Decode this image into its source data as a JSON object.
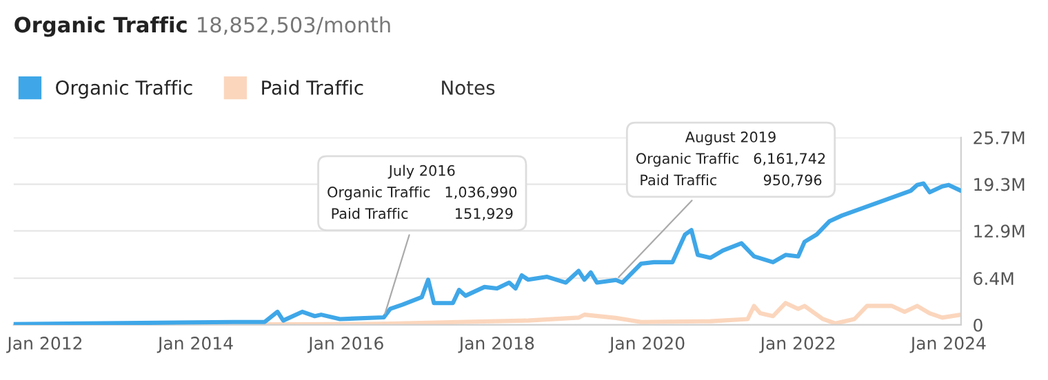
{
  "chart_data": {
    "type": "line",
    "title": "Organic Traffic",
    "subtitle": "18,852,503/month",
    "x": [
      "2011-08",
      "2014-07",
      "2014-12",
      "2015-02",
      "2015-03",
      "2015-06",
      "2015-08",
      "2015-09",
      "2015-12",
      "2016-07",
      "2016-08",
      "2016-10",
      "2017-01",
      "2017-02",
      "2017-03",
      "2017-06",
      "2017-07",
      "2017-08",
      "2017-11",
      "2018-01",
      "2018-03",
      "2018-04",
      "2018-05",
      "2018-06",
      "2018-09",
      "2018-12",
      "2019-02",
      "2019-03",
      "2019-04",
      "2019-05",
      "2019-08",
      "2019-09",
      "2019-12",
      "2020-02",
      "2020-05",
      "2020-07",
      "2020-08",
      "2020-09",
      "2020-11",
      "2021-01",
      "2021-04",
      "2021-06",
      "2021-09",
      "2021-11",
      "2022-01",
      "2022-02",
      "2022-04",
      "2022-06",
      "2022-08",
      "2022-10",
      "2023-01",
      "2023-07",
      "2023-08",
      "2023-09",
      "2023-10",
      "2023-12",
      "2024-01",
      "2024-03"
    ],
    "series": [
      {
        "name": "Organic Traffic",
        "color": "#3fa7e8",
        "values": [
          100000,
          400000,
          400000,
          1800000,
          600000,
          1800000,
          1200000,
          1400000,
          800000,
          1036990,
          2200000,
          2800000,
          3800000,
          6200000,
          3000000,
          3000000,
          4800000,
          4000000,
          5200000,
          5000000,
          5800000,
          5000000,
          6800000,
          6200000,
          6600000,
          5800000,
          7400000,
          6200000,
          7200000,
          5800000,
          6161742,
          5800000,
          8400000,
          8600000,
          8600000,
          12400000,
          13000000,
          9600000,
          9200000,
          10200000,
          11200000,
          9400000,
          8600000,
          9600000,
          9400000,
          11400000,
          12400000,
          14200000,
          15000000,
          null,
          null,
          18400000,
          19200000,
          19400000,
          18200000,
          19000000,
          19200000,
          18400000
        ]
      },
      {
        "name": "Paid Traffic",
        "color": "#fbd6bd",
        "x": [
          "2011-08",
          "2016-01",
          "2016-07",
          "2017-07",
          "2018-06",
          "2019-02",
          "2019-03",
          "2019-08",
          "2019-12",
          "2020-11",
          "2021-05",
          "2021-06",
          "2021-07",
          "2021-09",
          "2021-11",
          "2022-01",
          "2022-02",
          "2022-05",
          "2022-07",
          "2022-10",
          "2022-12",
          "2023-04",
          "2023-06",
          "2023-08",
          "2023-10",
          "2023-12",
          "2024-03"
        ],
        "values": [
          0,
          100000,
          151929,
          400000,
          600000,
          1000000,
          1400000,
          950796,
          400000,
          500000,
          800000,
          2600000,
          1600000,
          1200000,
          3000000,
          2200000,
          2600000,
          800000,
          200000,
          800000,
          2600000,
          2600000,
          1800000,
          2600000,
          1600000,
          1000000,
          1400000
        ]
      }
    ],
    "xlim": [
      "2011-08",
      "2024-03"
    ],
    "xticks": [
      {
        "value": "2012-01",
        "label": "Jan 2012"
      },
      {
        "value": "2014-01",
        "label": "Jan 2014"
      },
      {
        "value": "2016-01",
        "label": "Jan 2016"
      },
      {
        "value": "2018-01",
        "label": "Jan 2018"
      },
      {
        "value": "2020-01",
        "label": "Jan 2020"
      },
      {
        "value": "2022-01",
        "label": "Jan 2022"
      },
      {
        "value": "2024-01",
        "label": "Jan 2024"
      }
    ],
    "ylim": [
      0,
      25700000
    ],
    "yticks": [
      0,
      {
        "value": 6400000,
        "label": "6.4M"
      },
      {
        "value": 12900000,
        "label": "12.9M"
      },
      {
        "value": 19300000,
        "label": "19.3M"
      },
      {
        "value": 25700000,
        "label": "25.7M"
      }
    ],
    "grid": "y",
    "legend": "top left",
    "marker": "none",
    "annotations": [
      {
        "text": "July 2016\nOrganic Traffic   1,036,990\nPaid Traffic          151,929",
        "x": "2016-07",
        "y": 1036990
      },
      {
        "text": "August 2019\nOrganic Traffic   6,161,742\nPaid Traffic          950,796",
        "x": "2019-08",
        "y": 6161742
      },
      "Notes"
    ]
  }
}
